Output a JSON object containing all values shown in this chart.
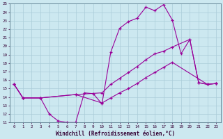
{
  "xlabel": "Windchill (Refroidissement éolien,°C)",
  "xlim": [
    -0.5,
    23.5
  ],
  "ylim": [
    11,
    25
  ],
  "xticks": [
    0,
    1,
    2,
    3,
    4,
    5,
    6,
    7,
    8,
    9,
    10,
    11,
    12,
    13,
    14,
    15,
    16,
    17,
    18,
    19,
    20,
    21,
    22,
    23
  ],
  "yticks": [
    11,
    12,
    13,
    14,
    15,
    16,
    17,
    18,
    19,
    20,
    21,
    22,
    23,
    24,
    25
  ],
  "background_color": "#cce8f0",
  "grid_color": "#aaccd8",
  "line_color": "#990099",
  "line1_x": [
    0,
    1,
    3,
    4,
    5,
    6,
    7,
    8,
    9,
    10,
    11,
    12,
    13,
    14,
    15,
    16,
    17,
    18,
    19,
    20,
    21,
    22,
    23
  ],
  "line1_y": [
    15.5,
    13.9,
    13.9,
    12.0,
    11.2,
    11.0,
    11.0,
    14.5,
    14.4,
    13.2,
    19.3,
    22.1,
    22.9,
    23.3,
    24.6,
    24.2,
    24.9,
    23.1,
    19.1,
    20.8,
    15.7,
    15.5,
    15.6
  ],
  "line2_x": [
    0,
    1,
    3,
    7,
    10,
    11,
    12,
    13,
    14,
    15,
    16,
    17,
    18,
    20,
    21,
    22,
    23
  ],
  "line2_y": [
    15.5,
    13.9,
    13.9,
    14.3,
    14.5,
    15.5,
    16.2,
    16.9,
    17.6,
    18.4,
    19.1,
    19.4,
    19.9,
    20.8,
    15.7,
    15.5,
    15.6
  ],
  "line3_x": [
    0,
    1,
    3,
    7,
    10,
    11,
    12,
    13,
    14,
    15,
    16,
    17,
    18,
    22,
    23
  ],
  "line3_y": [
    15.5,
    13.9,
    13.9,
    14.3,
    13.3,
    13.9,
    14.5,
    15.0,
    15.6,
    16.3,
    16.9,
    17.5,
    18.1,
    15.5,
    15.6
  ]
}
